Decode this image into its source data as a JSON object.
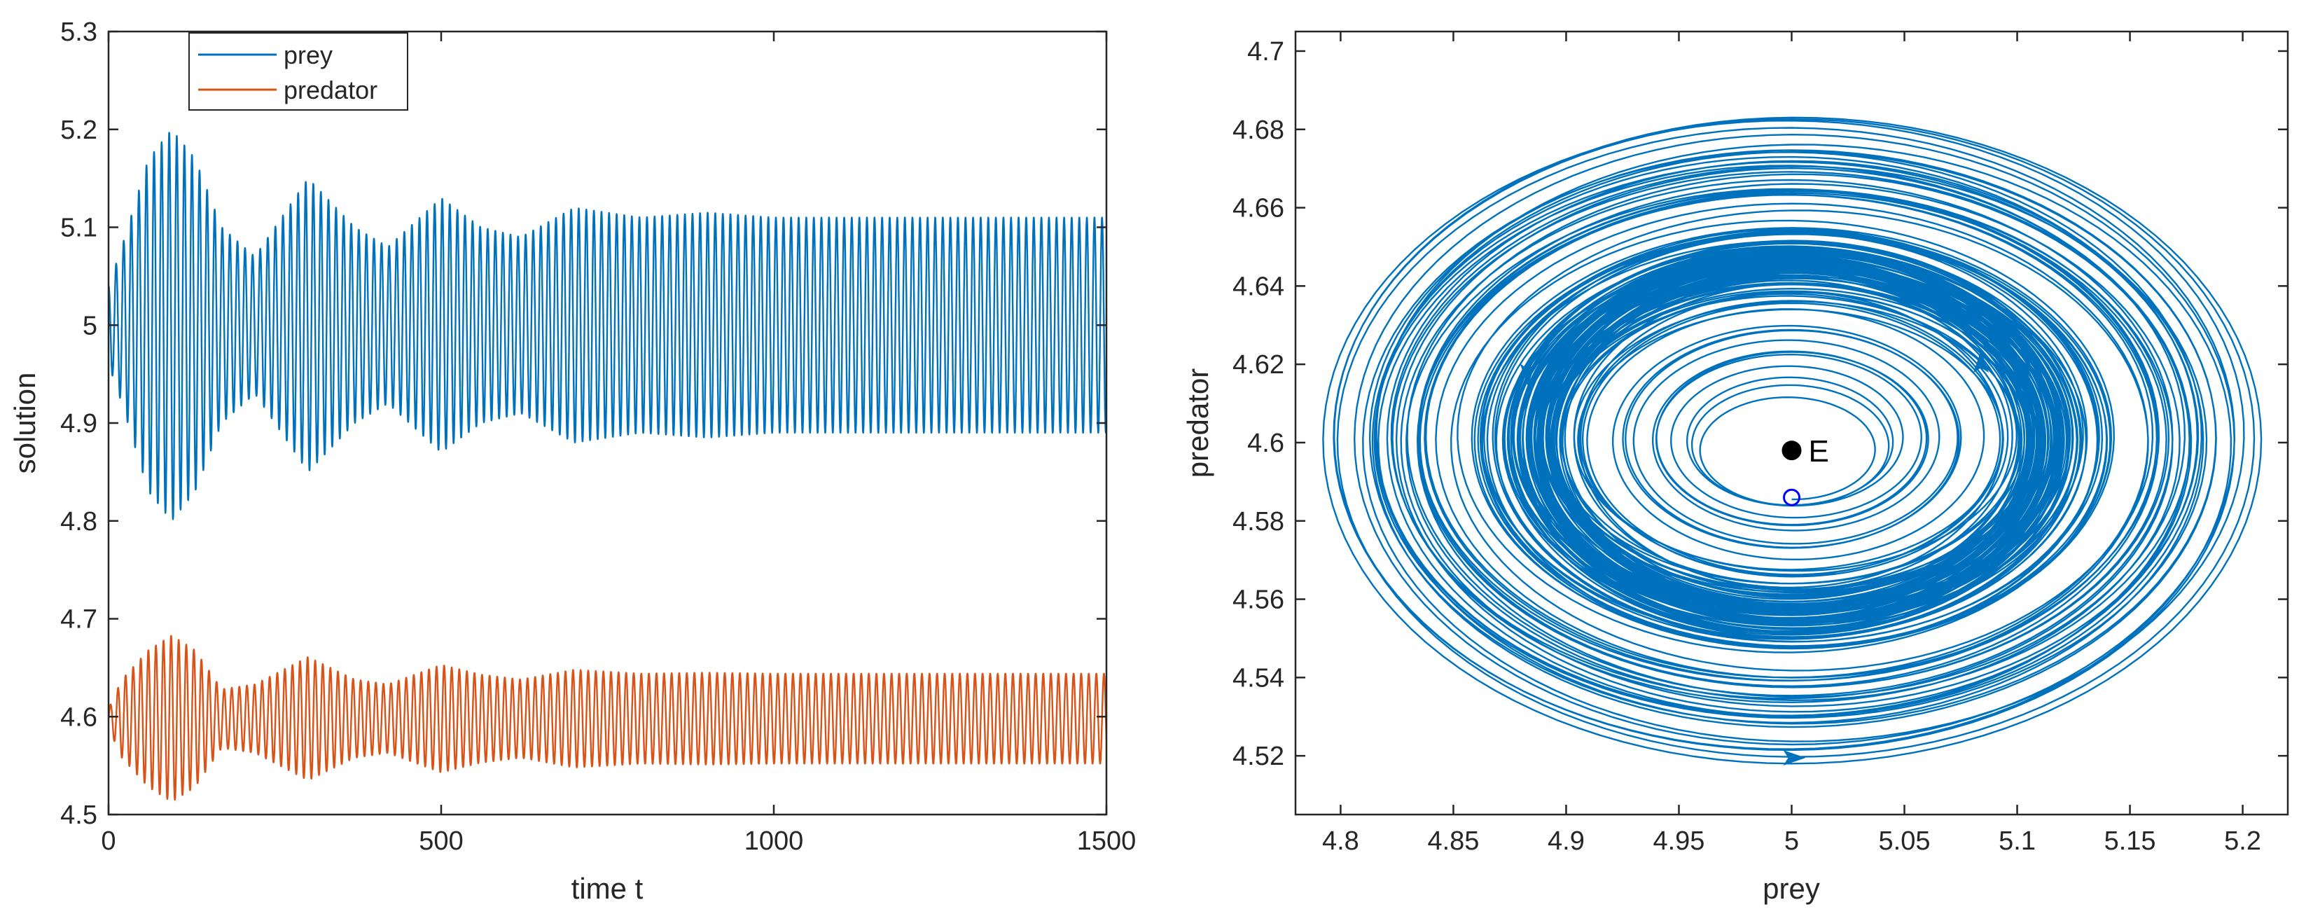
{
  "chart_data": [
    {
      "type": "line",
      "title": "",
      "xlabel": "time t",
      "ylabel": "solution",
      "xlim": [
        0,
        1500
      ],
      "ylim": [
        4.5,
        5.3
      ],
      "xticks": [
        0,
        500,
        1000,
        1500
      ],
      "xtick_labels": [
        "0",
        "500",
        "1000",
        "1500"
      ],
      "yticks": [
        4.5,
        4.6,
        4.7,
        4.8,
        4.9,
        5.0,
        5.1,
        5.2,
        5.3
      ],
      "ytick_labels": [
        "4.5",
        "4.6",
        "4.7",
        "4.8",
        "4.9",
        "5",
        "5.1",
        "5.2",
        "5.3"
      ],
      "legend_position": "top-left",
      "series": [
        {
          "name": "prey",
          "color": "#0072BD",
          "center": 5.0,
          "period": 11.4,
          "start_value": 5.04,
          "envelope_t": [
            0,
            20,
            60,
            95,
            130,
            170,
            220,
            300,
            370,
            420,
            500,
            560,
            620,
            700,
            800,
            900,
            1000,
            1500
          ],
          "envelope_amplitude": [
            0.04,
            0.08,
            0.17,
            0.2,
            0.17,
            0.1,
            0.07,
            0.15,
            0.1,
            0.08,
            0.13,
            0.1,
            0.09,
            0.12,
            0.11,
            0.115,
            0.11,
            0.11
          ]
        },
        {
          "name": "predator",
          "color": "#D95319",
          "center": 4.598,
          "period": 11.4,
          "start_value": 4.598,
          "envelope_t": [
            0,
            20,
            60,
            95,
            130,
            170,
            220,
            300,
            370,
            420,
            500,
            560,
            620,
            700,
            800,
            900,
            1000,
            1500
          ],
          "envelope_amplitude": [
            0.01,
            0.04,
            0.07,
            0.085,
            0.07,
            0.03,
            0.035,
            0.063,
            0.04,
            0.035,
            0.055,
            0.045,
            0.04,
            0.05,
            0.046,
            0.047,
            0.046,
            0.046
          ]
        }
      ]
    },
    {
      "type": "line",
      "subtype": "phase-portrait",
      "title": "",
      "xlabel": "prey",
      "ylabel": "predator",
      "xlim": [
        4.78,
        5.22
      ],
      "ylim": [
        4.505,
        4.705
      ],
      "xticks": [
        4.8,
        4.85,
        4.9,
        4.95,
        5.0,
        5.05,
        5.1,
        5.15,
        5.2
      ],
      "xtick_labels": [
        "4.8",
        "4.85",
        "4.9",
        "4.95",
        "5",
        "5.05",
        "5.1",
        "5.15",
        "5.2"
      ],
      "yticks": [
        4.52,
        4.54,
        4.56,
        4.58,
        4.6,
        4.62,
        4.64,
        4.66,
        4.68,
        4.7
      ],
      "ytick_labels": [
        "4.52",
        "4.54",
        "4.56",
        "4.58",
        "4.6",
        "4.62",
        "4.64",
        "4.66",
        "4.68",
        "4.7"
      ],
      "trajectory": {
        "color": "#0072BD",
        "center_x": 5.0,
        "center_y": 4.601,
        "amplitude_x": [
          0.035,
          0.08,
          0.12,
          0.17,
          0.2,
          0.17,
          0.12,
          0.1,
          0.14,
          0.1,
          0.11,
          0.12,
          0.11,
          0.115,
          0.11
        ],
        "amplitude_y": [
          0.012,
          0.03,
          0.045,
          0.065,
          0.08,
          0.065,
          0.045,
          0.035,
          0.055,
          0.04,
          0.045,
          0.048,
          0.045,
          0.046,
          0.046
        ],
        "start_point": [
          5.0,
          4.586
        ],
        "arrow_points": [
          [
            5.0,
            4.5195,
            "right"
          ],
          [
            5.084,
            4.62,
            "up"
          ],
          [
            4.883,
            4.618,
            "down"
          ]
        ]
      },
      "start_marker": {
        "x": 5.0,
        "y": 4.586,
        "color": "#0000FF"
      },
      "equilibrium": {
        "x": 5.0,
        "y": 4.598,
        "label": "E",
        "color": "#000000"
      }
    }
  ]
}
